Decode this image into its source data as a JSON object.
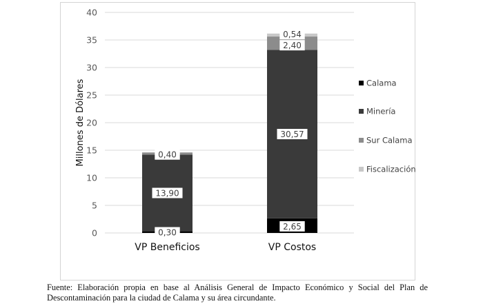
{
  "chart_data": {
    "type": "stacked-bar",
    "title": "",
    "xlabel": "",
    "ylabel": "Millones de Dólares",
    "ylim": [
      0,
      40
    ],
    "yticks": [
      0,
      5,
      10,
      15,
      20,
      25,
      30,
      35,
      40
    ],
    "ytick_labels": [
      "0",
      "5",
      "10",
      "15",
      "20",
      "25",
      "30",
      "35",
      "40"
    ],
    "grid": true,
    "legend_position": "right",
    "categories": [
      "VP Beneficios",
      "VP Costos"
    ],
    "series": [
      {
        "name": "Calama",
        "color": "#000000",
        "values": [
          0.3,
          2.65
        ],
        "labels": [
          "0,30",
          "2,65"
        ]
      },
      {
        "name": "Minería",
        "color": "#3a3a3a",
        "values": [
          13.9,
          30.57
        ],
        "labels": [
          "13,90",
          "30,57"
        ]
      },
      {
        "name": "Sur Calama",
        "color": "#8c8c8c",
        "values": [
          0.4,
          2.4
        ],
        "labels": [
          "0,40",
          "2,40"
        ]
      },
      {
        "name": "Fiscalización",
        "color": "#c8c8c8",
        "values": [
          0,
          0.54
        ],
        "labels": [
          "",
          "0,54"
        ]
      }
    ]
  },
  "footnote": {
    "line1": "Fuente: Elaboración propia en base al Análisis General de Impacto Económico y Social del Plan de",
    "line2": "Descontaminación para la ciudad de Calama y su área circundante."
  }
}
